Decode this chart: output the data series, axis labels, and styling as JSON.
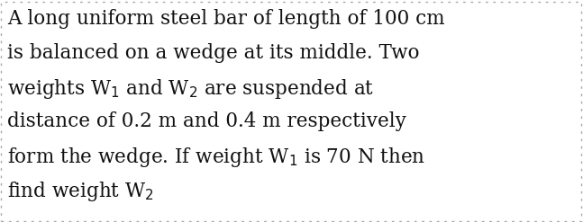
{
  "background_color": "#ffffff",
  "border_color": "#aaaaaa",
  "text_color": "#111111",
  "font_size": 15.5,
  "line1": "A long uniform steel bar of length of 100 cm",
  "line2": "is balanced on a wedge at its middle. Two",
  "line3_parts": [
    {
      "text": "weights W",
      "style": "normal"
    },
    {
      "text": "1",
      "style": "subscript"
    },
    {
      "text": " and W",
      "style": "normal"
    },
    {
      "text": "2",
      "style": "subscript"
    },
    {
      "text": " are suspended at",
      "style": "normal"
    }
  ],
  "line4": "distance of 0.2 m and 0.4 m respectively",
  "line5_parts": [
    {
      "text": "form the wedge. If weight W",
      "style": "normal"
    },
    {
      "text": "1",
      "style": "subscript"
    },
    {
      "text": " is 70 N then",
      "style": "normal"
    }
  ],
  "line6_parts": [
    {
      "text": "find weight W",
      "style": "normal"
    },
    {
      "text": "2",
      "style": "subscript"
    }
  ],
  "figwidth": 6.47,
  "figheight": 2.47,
  "dpi": 100
}
